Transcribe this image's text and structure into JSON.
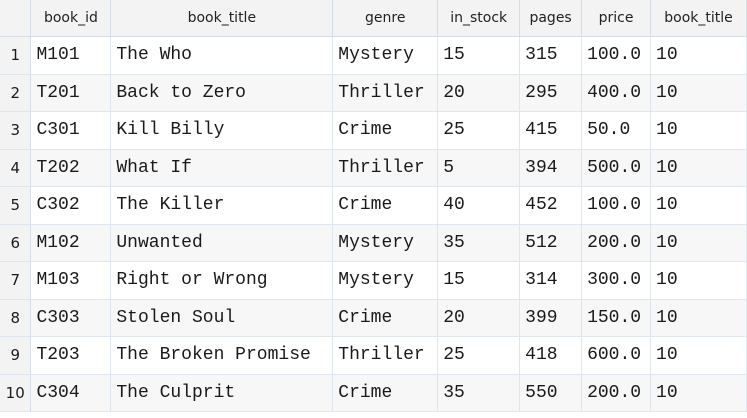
{
  "grid": {
    "columns": [
      "book_id",
      "book_title",
      "genre",
      "in_stock",
      "pages",
      "price",
      "book_title"
    ],
    "rows": [
      {
        "num": "1",
        "cells": [
          "M101",
          "The Who",
          "Mystery",
          "15",
          "315",
          "100.0",
          "10"
        ]
      },
      {
        "num": "2",
        "cells": [
          "T201",
          "Back to Zero",
          "Thriller",
          "20",
          "295",
          "400.0",
          "10"
        ]
      },
      {
        "num": "3",
        "cells": [
          "C301",
          "Kill Billy",
          "Crime",
          "25",
          "415",
          "50.0",
          "10"
        ]
      },
      {
        "num": "4",
        "cells": [
          "T202",
          "What If",
          "Thriller",
          "5",
          "394",
          "500.0",
          "10"
        ]
      },
      {
        "num": "5",
        "cells": [
          "C302",
          "The Killer",
          "Crime",
          "40",
          "452",
          "100.0",
          "10"
        ]
      },
      {
        "num": "6",
        "cells": [
          "M102",
          "Unwanted",
          "Mystery",
          "35",
          "512",
          "200.0",
          "10"
        ]
      },
      {
        "num": "7",
        "cells": [
          "M103",
          "Right or Wrong",
          "Mystery",
          "15",
          "314",
          "300.0",
          "10"
        ]
      },
      {
        "num": "8",
        "cells": [
          "C303",
          "Stolen Soul",
          "Crime",
          "20",
          "399",
          "150.0",
          "10"
        ]
      },
      {
        "num": "9",
        "cells": [
          "T203",
          "The Broken Promise",
          "Thriller",
          "25",
          "418",
          "600.0",
          "10"
        ]
      },
      {
        "num": "10",
        "cells": [
          "C304",
          "The Culprit",
          "Crime",
          "35",
          "550",
          "200.0",
          "10"
        ]
      }
    ]
  }
}
